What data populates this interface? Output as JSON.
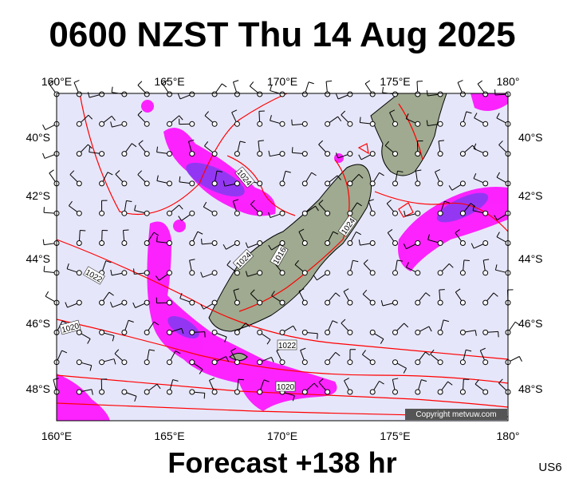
{
  "header": {
    "title": "0600 NZST Thu 14 Aug 2025"
  },
  "axes": {
    "top_labels": [
      "160°E",
      "165°E",
      "170°E",
      "175°E",
      "180°"
    ],
    "bottom_labels": [
      "160°E",
      "165°E",
      "170°E",
      "175°E",
      "180°"
    ],
    "left_labels": [
      "40°S",
      "42°S",
      "44°S",
      "46°S",
      "48°S"
    ],
    "right_labels": [
      "40°S",
      "42°S",
      "44°S",
      "46°S",
      "48°S"
    ]
  },
  "isobars": [
    "1024",
    "1024",
    "1016",
    "1024",
    "1022",
    "1020",
    "1022",
    "1020"
  ],
  "copyright": "Copyright metvuw.com",
  "footer": {
    "forecast": "Forecast +138 hr",
    "code": "US6"
  }
}
